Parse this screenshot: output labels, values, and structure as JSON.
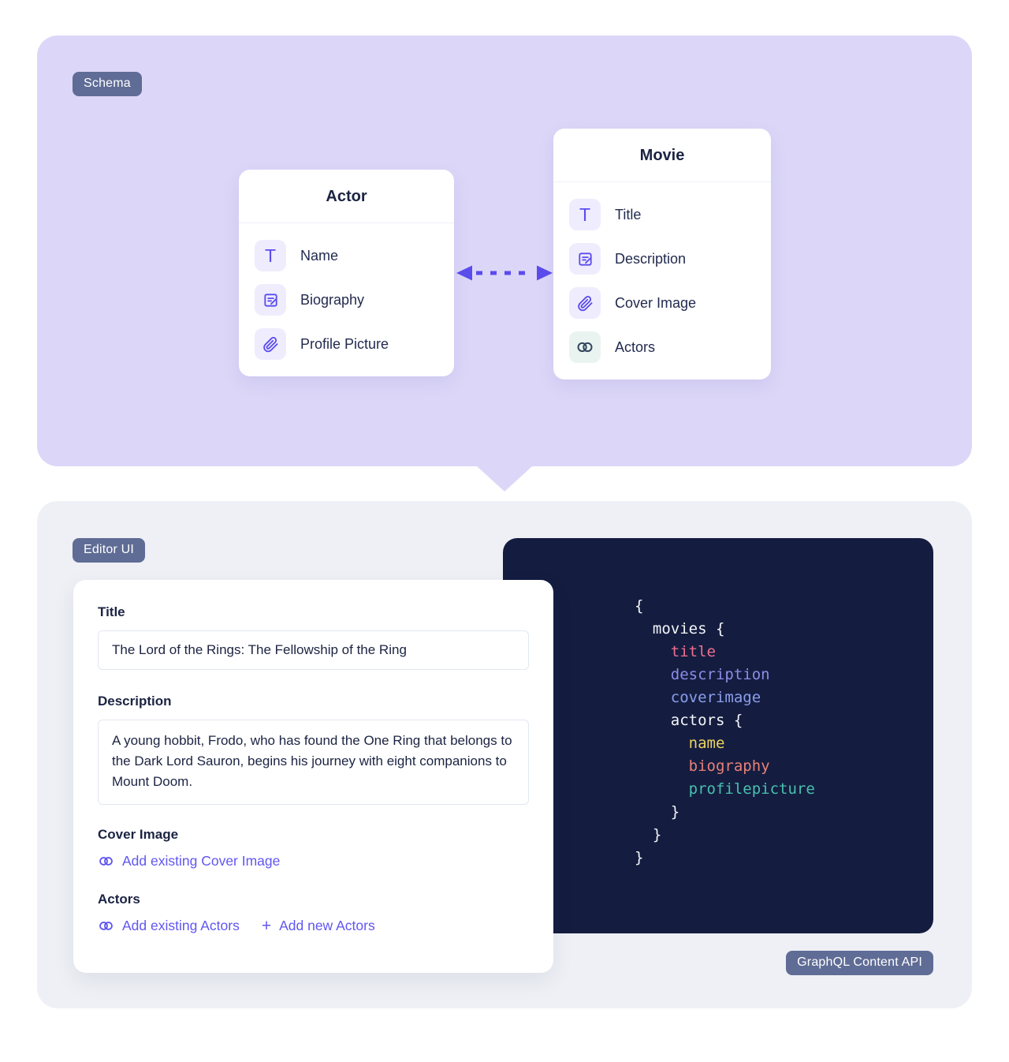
{
  "schema_section": {
    "badge": "Schema",
    "entities": [
      {
        "name": "Actor",
        "fields": [
          {
            "icon": "text-icon",
            "label": "Name"
          },
          {
            "icon": "richtext-icon",
            "label": "Biography"
          },
          {
            "icon": "attachment-icon",
            "label": "Profile Picture"
          }
        ]
      },
      {
        "name": "Movie",
        "fields": [
          {
            "icon": "text-icon",
            "label": "Title"
          },
          {
            "icon": "richtext-icon",
            "label": "Description"
          },
          {
            "icon": "attachment-icon",
            "label": "Cover Image"
          },
          {
            "icon": "reference-icon",
            "label": "Actors"
          }
        ]
      }
    ]
  },
  "editor_section": {
    "badge": "Editor UI",
    "form": {
      "title_label": "Title",
      "title_value": "The Lord of the Rings: The Fellowship of the Ring",
      "description_label": "Description",
      "description_value": "A young hobbit, Frodo, who has found the One Ring that belongs to the Dark Lord Sauron, begins his journey with eight companions to Mount Doom.",
      "cover_image_label": "Cover Image",
      "add_existing_cover_image": "Add existing Cover Image",
      "actors_label": "Actors",
      "add_existing_actors": "Add existing Actors",
      "add_new_actors": "Add new Actors"
    },
    "code_panel": {
      "badge": "GraphQL Content API",
      "lines": [
        {
          "text": "{",
          "indent": 0,
          "color": "plain"
        },
        {
          "text": "movies {",
          "indent": 1,
          "color": "plain"
        },
        {
          "text": "title",
          "indent": 2,
          "color": "title"
        },
        {
          "text": "description",
          "indent": 2,
          "color": "description"
        },
        {
          "text": "coverimage",
          "indent": 2,
          "color": "coverimage"
        },
        {
          "text": "actors {",
          "indent": 2,
          "color": "plain"
        },
        {
          "text": "name",
          "indent": 3,
          "color": "name"
        },
        {
          "text": "biography",
          "indent": 3,
          "color": "biography"
        },
        {
          "text": "profilepicture",
          "indent": 3,
          "color": "profilepicture"
        },
        {
          "text": "}",
          "indent": 2,
          "color": "plain"
        },
        {
          "text": "}",
          "indent": 1,
          "color": "plain"
        },
        {
          "text": "}",
          "indent": 0,
          "color": "plain"
        }
      ]
    }
  },
  "glyphs": {
    "text_field": "T",
    "plus": "+"
  },
  "colors": {
    "ui": {
      "accent": "#5B4CEC",
      "link": "#6156F1",
      "badge_bg": "#5F6C95",
      "schema_panel_bg": "#DCD7F8",
      "editor_panel_bg": "#EEF0F5",
      "code_panel_bg": "#141D40",
      "heading_text": "#1B2342",
      "field_icon_bg": "#EFECFD",
      "reference_icon_bg": "#E9F4F1",
      "reference_icon_color": "#33475E",
      "input_border": "#E2E7F0"
    },
    "code": {
      "plain": "#F4F6FA",
      "title": "#F06E8E",
      "description": "#8E8CE6",
      "coverimage": "#8C9EEC",
      "name": "#EDD35E",
      "biography": "#E88078",
      "profilepicture": "#49C0AE"
    }
  }
}
